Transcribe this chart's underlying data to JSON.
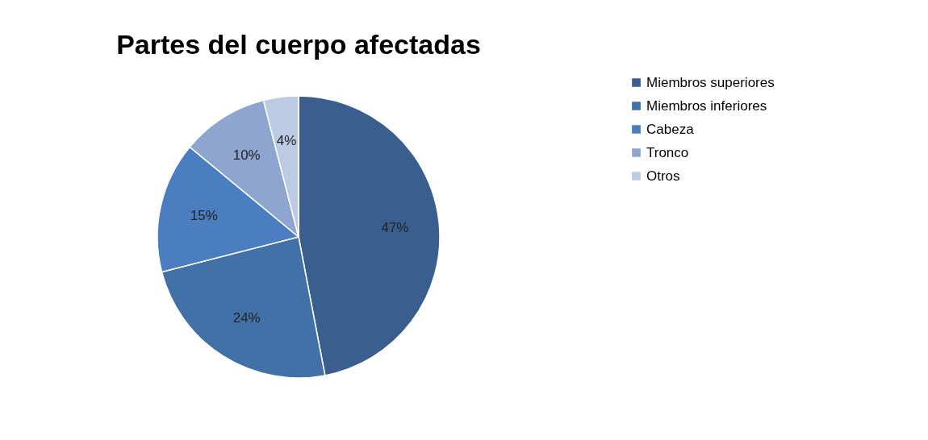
{
  "chart_data": {
    "type": "pie",
    "title": "Partes del cuerpo afectadas",
    "categories": [
      "Miembros superiores",
      "Miembros inferiores",
      "Cabeza",
      "Tronco",
      "Otros"
    ],
    "values": [
      47,
      24,
      15,
      10,
      4
    ],
    "colors": [
      "#3a5f8f",
      "#4271a8",
      "#4a7ec0",
      "#8da5cf",
      "#bccae3"
    ],
    "value_labels": [
      "47%",
      "24%",
      "15%",
      "10%",
      "4%"
    ],
    "legend": "right"
  }
}
